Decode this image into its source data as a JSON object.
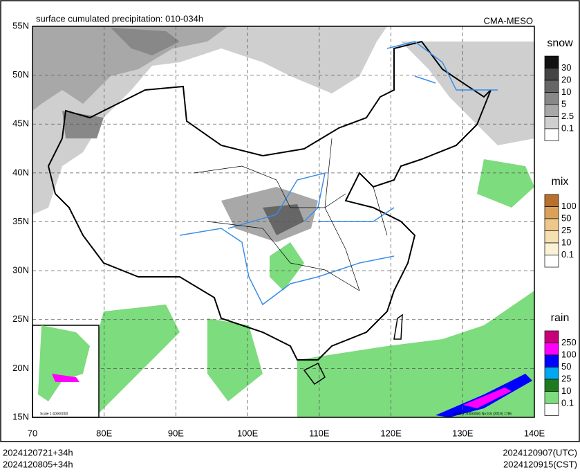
{
  "header": {
    "title": "surface cumulated precipitation: 010-034h",
    "source": "CMA-MESO"
  },
  "axes": {
    "lat_labels": [
      "55N",
      "50N",
      "45N",
      "40N",
      "35N",
      "30N",
      "25N",
      "20N",
      "15N"
    ],
    "lon_labels": [
      "70",
      "80E",
      "90E",
      "100E",
      "110E",
      "120E",
      "130E",
      "140E"
    ]
  },
  "legends": [
    {
      "title": "snow",
      "labels": [
        "30",
        "20",
        "10",
        "5",
        "2.5",
        "0.1"
      ],
      "colors": [
        "#111111",
        "#444444",
        "#666666",
        "#888888",
        "#a8a8a8",
        "#cfcfcf",
        "#ffffff"
      ]
    },
    {
      "title": "mix",
      "labels": [
        "100",
        "50",
        "25",
        "10",
        "0.1"
      ],
      "colors": [
        "#b7702e",
        "#d9a15a",
        "#eec88a",
        "#f5e0b0",
        "#fbf1d6",
        "#ffffff"
      ]
    },
    {
      "title": "rain",
      "labels": [
        "250",
        "100",
        "50",
        "25",
        "10",
        "0.1"
      ],
      "colors": [
        "#c8007a",
        "#ff00ff",
        "#0000ff",
        "#00a8f0",
        "#1e7a1e",
        "#7ddc7d",
        "#ffffff"
      ]
    }
  ],
  "scale_main": "Scale 1:20000000 No:GS (2019) 1786",
  "scale_inset": "Scale 1:40000000",
  "footer": {
    "left": [
      "2024120721+34h",
      "2024120805+34h"
    ],
    "right": [
      "2024120907(UTC)",
      "2024120915(CST)"
    ]
  }
}
